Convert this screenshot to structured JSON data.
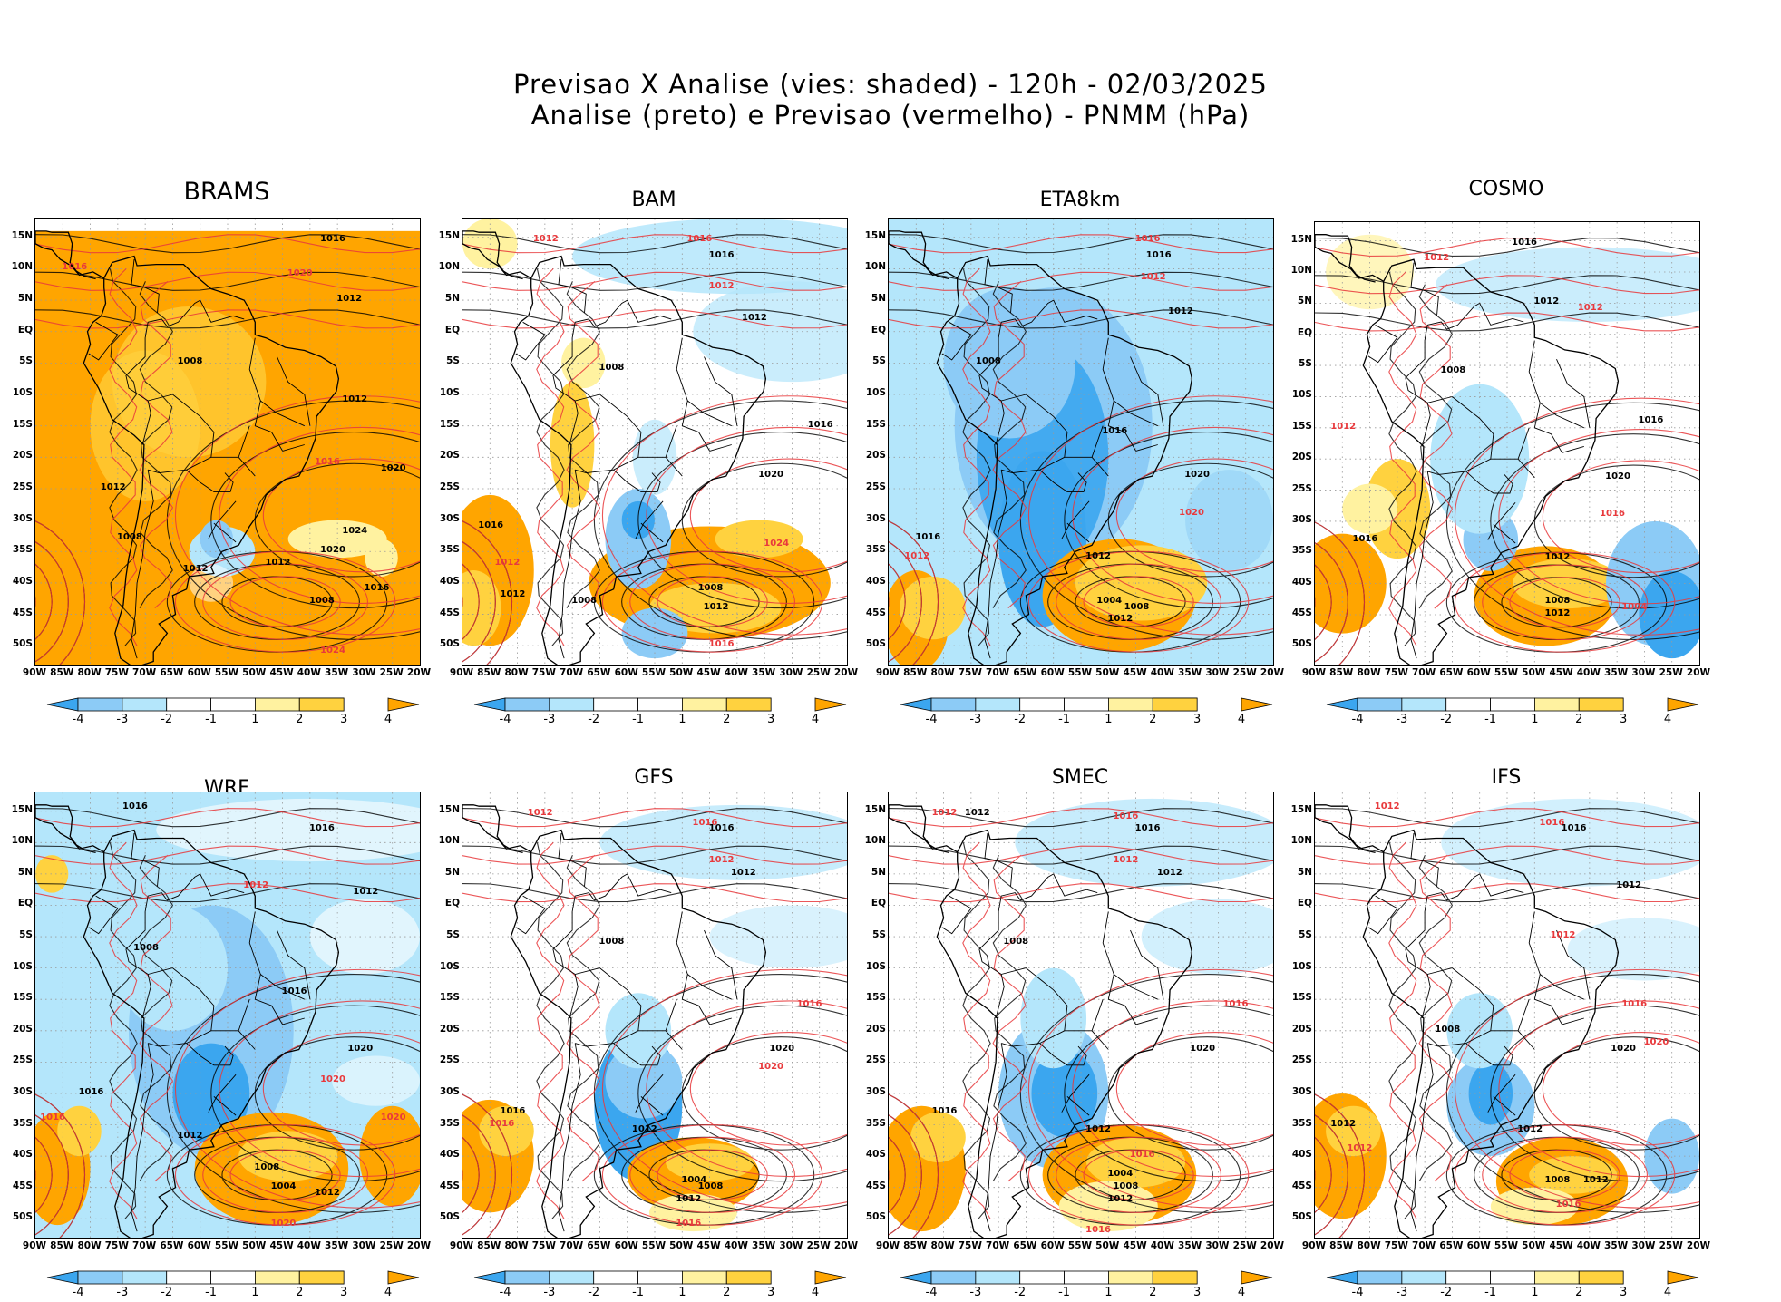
{
  "title": {
    "line1": "Previsao X Analise (vies: shaded) - 120h - 02/03/2025",
    "line2": "Analise (preto) e Previsao (vermelho) - PNMM (hPa)"
  },
  "colors": {
    "neg4": "#3ba6ef",
    "neg3": "#8ccbf6",
    "neg2": "#b4e6fb",
    "neg1": "#ffffff",
    "pos1": "#ffffff",
    "pos2": "#fff2a0",
    "pos3": "#ffd23f",
    "pos4": "#ffa500",
    "analysis_contour": "#000000",
    "forecast_contour": "#e8393c",
    "coast": "#000000",
    "grid": "#9a9a9a"
  },
  "lat_labels": [
    "15N",
    "10N",
    "5N",
    "EQ",
    "5S",
    "10S",
    "15S",
    "20S",
    "25S",
    "30S",
    "35S",
    "40S",
    "45S",
    "50S"
  ],
  "lon_labels": [
    "90W",
    "85W",
    "80W",
    "75W",
    "70W",
    "65W",
    "60W",
    "55W",
    "50W",
    "45W",
    "40W",
    "35W",
    "30W",
    "25W",
    "20W"
  ],
  "colorbar_ticks": [
    "-4",
    "-3",
    "-2",
    "-1",
    "1",
    "2",
    "3",
    "4"
  ],
  "panels": [
    {
      "name": "BRAMS",
      "style": "brams",
      "contour_labels": [
        {
          "text": "1016",
          "c": "k",
          "lon": -36,
          "lat": 14.5
        },
        {
          "text": "1012",
          "c": "k",
          "lon": -33,
          "lat": 5
        },
        {
          "text": "1020",
          "c": "r",
          "lon": -42,
          "lat": 9
        },
        {
          "text": "1016",
          "c": "r",
          "lon": -83,
          "lat": 10
        },
        {
          "text": "1008",
          "c": "k",
          "lon": -62,
          "lat": -5
        },
        {
          "text": "1012",
          "c": "k",
          "lon": -32,
          "lat": -11
        },
        {
          "text": "1016",
          "c": "r",
          "lon": -37,
          "lat": -21
        },
        {
          "text": "1020",
          "c": "k",
          "lon": -25,
          "lat": -22
        },
        {
          "text": "1024",
          "c": "k",
          "lon": -32,
          "lat": -32
        },
        {
          "text": "1020",
          "c": "k",
          "lon": -36,
          "lat": -35
        },
        {
          "text": "1012",
          "c": "k",
          "lon": -46,
          "lat": -37
        },
        {
          "text": "1008",
          "c": "k",
          "lon": -38,
          "lat": -43
        },
        {
          "text": "1016",
          "c": "k",
          "lon": -28,
          "lat": -41
        },
        {
          "text": "1012",
          "c": "k",
          "lon": -76,
          "lat": -25
        },
        {
          "text": "1008",
          "c": "k",
          "lon": -73,
          "lat": -33
        },
        {
          "text": "1012",
          "c": "k",
          "lon": -61,
          "lat": -38
        },
        {
          "text": "1024",
          "c": "r",
          "lon": -36,
          "lat": -51
        }
      ]
    },
    {
      "name": "BAM",
      "style": "bam",
      "contour_labels": [
        {
          "text": "1012",
          "c": "r",
          "lon": -75,
          "lat": 14.5
        },
        {
          "text": "1016",
          "c": "r",
          "lon": -47,
          "lat": 14.5
        },
        {
          "text": "1016",
          "c": "k",
          "lon": -43,
          "lat": 12
        },
        {
          "text": "1012",
          "c": "r",
          "lon": -43,
          "lat": 7
        },
        {
          "text": "1012",
          "c": "k",
          "lon": -37,
          "lat": 2
        },
        {
          "text": "1008",
          "c": "k",
          "lon": -63,
          "lat": -6
        },
        {
          "text": "1016",
          "c": "k",
          "lon": -25,
          "lat": -15
        },
        {
          "text": "1020",
          "c": "k",
          "lon": -34,
          "lat": -23
        },
        {
          "text": "1024",
          "c": "r",
          "lon": -33,
          "lat": -34
        },
        {
          "text": "1016",
          "c": "k",
          "lon": -85,
          "lat": -31
        },
        {
          "text": "1012",
          "c": "r",
          "lon": -82,
          "lat": -37
        },
        {
          "text": "1008",
          "c": "k",
          "lon": -45,
          "lat": -41
        },
        {
          "text": "1012",
          "c": "k",
          "lon": -44,
          "lat": -44
        },
        {
          "text": "1016",
          "c": "r",
          "lon": -43,
          "lat": -50
        },
        {
          "text": "1008",
          "c": "k",
          "lon": -68,
          "lat": -43
        },
        {
          "text": "1012",
          "c": "k",
          "lon": -81,
          "lat": -42
        }
      ]
    },
    {
      "name": "ETA8km",
      "style": "eta",
      "contour_labels": [
        {
          "text": "1016",
          "c": "r",
          "lon": -43,
          "lat": 14.5
        },
        {
          "text": "1016",
          "c": "k",
          "lon": -41,
          "lat": 12
        },
        {
          "text": "1012",
          "c": "r",
          "lon": -42,
          "lat": 8.5
        },
        {
          "text": "1012",
          "c": "k",
          "lon": -37,
          "lat": 3
        },
        {
          "text": "1008",
          "c": "k",
          "lon": -72,
          "lat": -5
        },
        {
          "text": "1016",
          "c": "k",
          "lon": -49,
          "lat": -16
        },
        {
          "text": "1020",
          "c": "k",
          "lon": -34,
          "lat": -23
        },
        {
          "text": "1020",
          "c": "r",
          "lon": -35,
          "lat": -29
        },
        {
          "text": "1012",
          "c": "k",
          "lon": -52,
          "lat": -36
        },
        {
          "text": "1004",
          "c": "k",
          "lon": -50,
          "lat": -43
        },
        {
          "text": "1008",
          "c": "k",
          "lon": -45,
          "lat": -44
        },
        {
          "text": "1012",
          "c": "k",
          "lon": -48,
          "lat": -46
        },
        {
          "text": "1016",
          "c": "k",
          "lon": -83,
          "lat": -33
        },
        {
          "text": "1012",
          "c": "r",
          "lon": -85,
          "lat": -36
        }
      ]
    },
    {
      "name": "COSMO",
      "style": "cosmo",
      "contour_labels": [
        {
          "text": "1016",
          "c": "k",
          "lon": -52,
          "lat": 14.5
        },
        {
          "text": "1012",
          "c": "r",
          "lon": -68,
          "lat": 12
        },
        {
          "text": "1012",
          "c": "k",
          "lon": -48,
          "lat": 5
        },
        {
          "text": "1012",
          "c": "r",
          "lon": -40,
          "lat": 4
        },
        {
          "text": "1008",
          "c": "k",
          "lon": -65,
          "lat": -6
        },
        {
          "text": "1016",
          "c": "k",
          "lon": -29,
          "lat": -14
        },
        {
          "text": "1020",
          "c": "k",
          "lon": -35,
          "lat": -23
        },
        {
          "text": "1016",
          "c": "r",
          "lon": -36,
          "lat": -29
        },
        {
          "text": "1012",
          "c": "k",
          "lon": -46,
          "lat": -36
        },
        {
          "text": "1008",
          "c": "k",
          "lon": -46,
          "lat": -43
        },
        {
          "text": "1012",
          "c": "k",
          "lon": -46,
          "lat": -45
        },
        {
          "text": "1004",
          "c": "r",
          "lon": -32,
          "lat": -44
        },
        {
          "text": "1012",
          "c": "r",
          "lon": -85,
          "lat": -15
        },
        {
          "text": "1016",
          "c": "k",
          "lon": -81,
          "lat": -33
        }
      ]
    },
    {
      "name": "WRF",
      "style": "wrf",
      "contour_labels": [
        {
          "text": "1016",
          "c": "k",
          "lon": -72,
          "lat": 15.5
        },
        {
          "text": "1016",
          "c": "k",
          "lon": -38,
          "lat": 12
        },
        {
          "text": "1012",
          "c": "r",
          "lon": -50,
          "lat": 3
        },
        {
          "text": "1012",
          "c": "k",
          "lon": -30,
          "lat": 2
        },
        {
          "text": "1008",
          "c": "k",
          "lon": -70,
          "lat": -7
        },
        {
          "text": "1016",
          "c": "k",
          "lon": -43,
          "lat": -14
        },
        {
          "text": "1020",
          "c": "k",
          "lon": -31,
          "lat": -23
        },
        {
          "text": "1020",
          "c": "r",
          "lon": -36,
          "lat": -28
        },
        {
          "text": "1012",
          "c": "k",
          "lon": -62,
          "lat": -37
        },
        {
          "text": "1008",
          "c": "k",
          "lon": -48,
          "lat": -42
        },
        {
          "text": "1004",
          "c": "k",
          "lon": -45,
          "lat": -45
        },
        {
          "text": "1012",
          "c": "k",
          "lon": -37,
          "lat": -46
        },
        {
          "text": "1020",
          "c": "r",
          "lon": -45,
          "lat": -51
        },
        {
          "text": "1016",
          "c": "k",
          "lon": -80,
          "lat": -30
        },
        {
          "text": "1016",
          "c": "r",
          "lon": -87,
          "lat": -34
        },
        {
          "text": "1020",
          "c": "r",
          "lon": -25,
          "lat": -34
        }
      ]
    },
    {
      "name": "GFS",
      "style": "gfs",
      "contour_labels": [
        {
          "text": "1012",
          "c": "r",
          "lon": -76,
          "lat": 14.5
        },
        {
          "text": "1016",
          "c": "r",
          "lon": -46,
          "lat": 13
        },
        {
          "text": "1016",
          "c": "k",
          "lon": -43,
          "lat": 12
        },
        {
          "text": "1012",
          "c": "r",
          "lon": -43,
          "lat": 7
        },
        {
          "text": "1012",
          "c": "k",
          "lon": -39,
          "lat": 5
        },
        {
          "text": "1008",
          "c": "k",
          "lon": -63,
          "lat": -6
        },
        {
          "text": "1016",
          "c": "r",
          "lon": -27,
          "lat": -16
        },
        {
          "text": "1020",
          "c": "k",
          "lon": -32,
          "lat": -23
        },
        {
          "text": "1020",
          "c": "r",
          "lon": -34,
          "lat": -26
        },
        {
          "text": "1012",
          "c": "k",
          "lon": -57,
          "lat": -36
        },
        {
          "text": "1004",
          "c": "k",
          "lon": -48,
          "lat": -44
        },
        {
          "text": "1008",
          "c": "k",
          "lon": -45,
          "lat": -45
        },
        {
          "text": "1012",
          "c": "k",
          "lon": -49,
          "lat": -47
        },
        {
          "text": "1016",
          "c": "r",
          "lon": -49,
          "lat": -51
        },
        {
          "text": "1016",
          "c": "k",
          "lon": -81,
          "lat": -33
        },
        {
          "text": "1016",
          "c": "r",
          "lon": -83,
          "lat": -35
        }
      ]
    },
    {
      "name": "SMEC",
      "style": "smec",
      "contour_labels": [
        {
          "text": "1012",
          "c": "r",
          "lon": -80,
          "lat": 14.5
        },
        {
          "text": "1012",
          "c": "k",
          "lon": -74,
          "lat": 14.5
        },
        {
          "text": "1016",
          "c": "r",
          "lon": -47,
          "lat": 14
        },
        {
          "text": "1016",
          "c": "k",
          "lon": -43,
          "lat": 12
        },
        {
          "text": "1012",
          "c": "r",
          "lon": -47,
          "lat": 7
        },
        {
          "text": "1012",
          "c": "k",
          "lon": -39,
          "lat": 5
        },
        {
          "text": "1008",
          "c": "k",
          "lon": -67,
          "lat": -6
        },
        {
          "text": "1016",
          "c": "r",
          "lon": -27,
          "lat": -16
        },
        {
          "text": "1020",
          "c": "k",
          "lon": -33,
          "lat": -23
        },
        {
          "text": "1012",
          "c": "k",
          "lon": -52,
          "lat": -36
        },
        {
          "text": "1016",
          "c": "r",
          "lon": -44,
          "lat": -40
        },
        {
          "text": "1004",
          "c": "k",
          "lon": -48,
          "lat": -43
        },
        {
          "text": "1008",
          "c": "k",
          "lon": -47,
          "lat": -45
        },
        {
          "text": "1012",
          "c": "k",
          "lon": -48,
          "lat": -47
        },
        {
          "text": "1016",
          "c": "k",
          "lon": -80,
          "lat": -33
        },
        {
          "text": "1016",
          "c": "r",
          "lon": -52,
          "lat": -52
        }
      ]
    },
    {
      "name": "IFS",
      "style": "ifs",
      "contour_labels": [
        {
          "text": "1012",
          "c": "r",
          "lon": -77,
          "lat": 15.5
        },
        {
          "text": "1016",
          "c": "r",
          "lon": -47,
          "lat": 13
        },
        {
          "text": "1016",
          "c": "k",
          "lon": -43,
          "lat": 12
        },
        {
          "text": "1012",
          "c": "k",
          "lon": -33,
          "lat": 3
        },
        {
          "text": "1012",
          "c": "r",
          "lon": -45,
          "lat": -5
        },
        {
          "text": "1008",
          "c": "k",
          "lon": -66,
          "lat": -20
        },
        {
          "text": "1016",
          "c": "r",
          "lon": -32,
          "lat": -16
        },
        {
          "text": "1020",
          "c": "k",
          "lon": -34,
          "lat": -23
        },
        {
          "text": "1020",
          "c": "r",
          "lon": -28,
          "lat": -22
        },
        {
          "text": "1012",
          "c": "k",
          "lon": -51,
          "lat": -36
        },
        {
          "text": "1008",
          "c": "k",
          "lon": -46,
          "lat": -44
        },
        {
          "text": "1012",
          "c": "k",
          "lon": -39,
          "lat": -44
        },
        {
          "text": "1016",
          "c": "r",
          "lon": -44,
          "lat": -48
        },
        {
          "text": "1012",
          "c": "k",
          "lon": -85,
          "lat": -35
        },
        {
          "text": "1012",
          "c": "r",
          "lon": -82,
          "lat": -39
        }
      ]
    }
  ]
}
